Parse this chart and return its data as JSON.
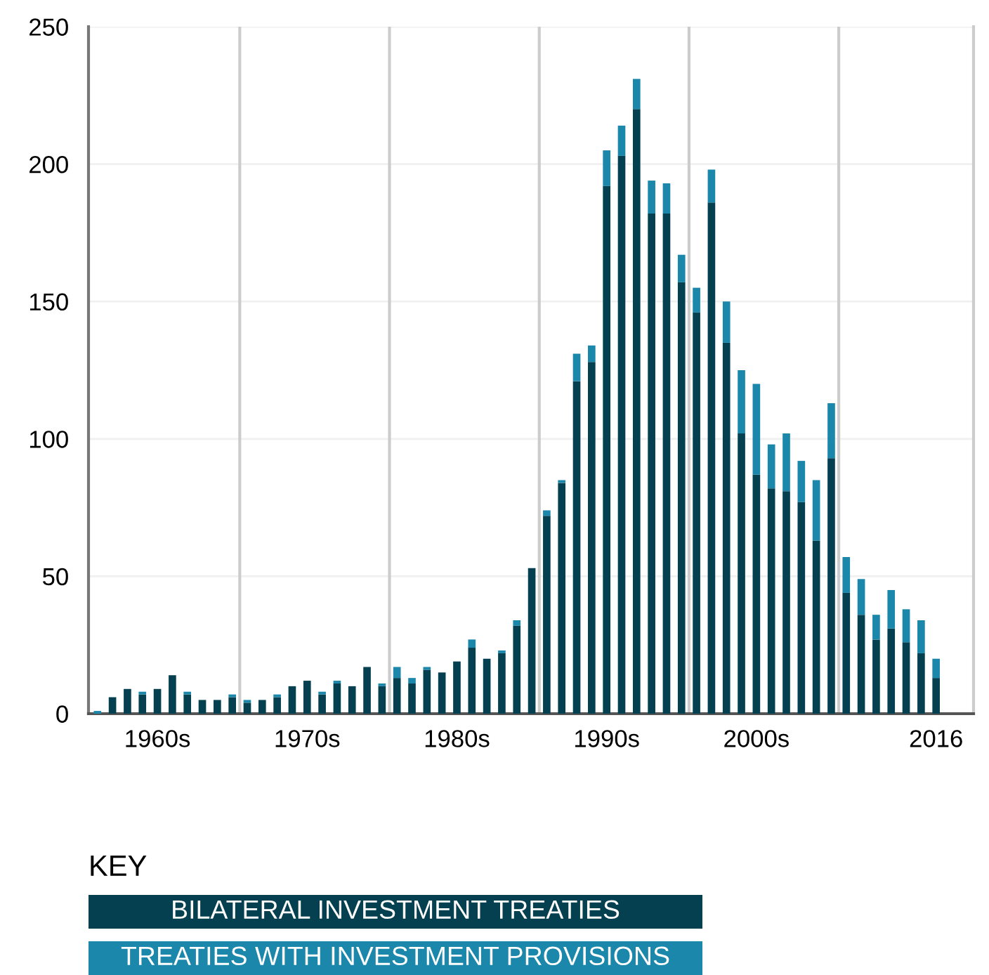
{
  "chart_data": {
    "type": "bar",
    "stacked": true,
    "categories": [
      null,
      null,
      null,
      null,
      "1960s",
      null,
      null,
      null,
      null,
      null,
      null,
      null,
      null,
      null,
      "1970s",
      null,
      null,
      null,
      null,
      null,
      null,
      null,
      null,
      null,
      "1980s",
      null,
      null,
      null,
      null,
      null,
      null,
      null,
      null,
      null,
      "1990s",
      null,
      null,
      null,
      null,
      null,
      null,
      null,
      null,
      null,
      "2000s",
      null,
      null,
      null,
      null,
      null,
      null,
      null,
      null,
      null,
      null,
      null,
      "2016"
    ],
    "series": [
      {
        "name": "BILATERAL INVESTMENT TREATIES",
        "color": "#04404f",
        "values": [
          0,
          6,
          9,
          7,
          9,
          14,
          7,
          5,
          5,
          6,
          4,
          5,
          6,
          10,
          12,
          7,
          11,
          10,
          17,
          10,
          13,
          11,
          16,
          15,
          19,
          24,
          20,
          22,
          32,
          53,
          72,
          84,
          121,
          128,
          192,
          203,
          220,
          182,
          182,
          157,
          146,
          186,
          135,
          102,
          87,
          82,
          81,
          77,
          63,
          93,
          44,
          36,
          27,
          31,
          26,
          22,
          13
        ]
      },
      {
        "name": "TREATIES WITH INVESTMENT PROVISIONS",
        "color": "#1b87aa",
        "values": [
          1,
          0,
          0,
          1,
          0,
          0,
          1,
          0,
          0,
          1,
          1,
          0,
          1,
          0,
          0,
          1,
          1,
          0,
          0,
          1,
          4,
          2,
          1,
          0,
          0,
          3,
          0,
          1,
          2,
          0,
          2,
          1,
          10,
          6,
          13,
          11,
          11,
          12,
          11,
          10,
          9,
          12,
          15,
          23,
          33,
          16,
          21,
          15,
          22,
          20,
          13,
          13,
          9,
          14,
          12,
          12,
          7
        ]
      }
    ],
    "ylim": [
      0,
      250
    ],
    "yticks": [
      0,
      50,
      100,
      150,
      200,
      250
    ],
    "grid": true,
    "legend": "bottom",
    "legend_title": "KEY"
  }
}
